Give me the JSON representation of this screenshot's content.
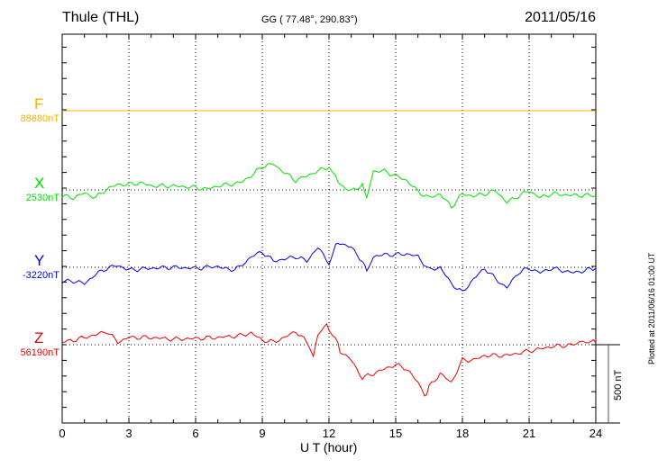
{
  "header": {
    "station": "Thule (THL)",
    "coords": "GG ( 77.48°, 290.83°)",
    "date": "2011/05/16"
  },
  "footer": {
    "plotted": "Plotted at 2011/06/16 01:00 UT"
  },
  "chart_data": {
    "type": "line",
    "title": "Thule (THL) 2011/05/16",
    "xlabel": "U T (hour)",
    "xlim": [
      0,
      24
    ],
    "xticks": [
      "0",
      "3",
      "6",
      "9",
      "12",
      "15",
      "18",
      "21",
      "24"
    ],
    "scale_bar": "500 nT",
    "grid": true,
    "series": [
      {
        "name": "F",
        "baseline": "88880nT",
        "color": "#ffb000",
        "points": [
          [
            0,
            0
          ],
          [
            24,
            0
          ]
        ]
      },
      {
        "name": "X",
        "baseline": "2530nT",
        "color": "#00e000",
        "points": [
          [
            0,
            -40
          ],
          [
            0.5,
            -50
          ],
          [
            1,
            -20
          ],
          [
            1.5,
            -50
          ],
          [
            2,
            5
          ],
          [
            2.5,
            35
          ],
          [
            3,
            35
          ],
          [
            3.5,
            45
          ],
          [
            4,
            25
          ],
          [
            5,
            25
          ],
          [
            6,
            15
          ],
          [
            6.5,
            5
          ],
          [
            7,
            25
          ],
          [
            8,
            45
          ],
          [
            8.5,
            90
          ],
          [
            9,
            150
          ],
          [
            9.5,
            165
          ],
          [
            10,
            110
          ],
          [
            10.5,
            60
          ],
          [
            11,
            90
          ],
          [
            11.5,
            120
          ],
          [
            12,
            150
          ],
          [
            12.3,
            80
          ],
          [
            12.5,
            35
          ],
          [
            13,
            -10
          ],
          [
            13.5,
            35
          ],
          [
            13.7,
            -50
          ],
          [
            14,
            120
          ],
          [
            14.5,
            120
          ],
          [
            15,
            90
          ],
          [
            15.5,
            60
          ],
          [
            16,
            -10
          ],
          [
            16.5,
            -50
          ],
          [
            17,
            -25
          ],
          [
            17.5,
            -110
          ],
          [
            18,
            -25
          ],
          [
            18.5,
            -40
          ],
          [
            19,
            -25
          ],
          [
            19.5,
            -5
          ],
          [
            20,
            -80
          ],
          [
            20.5,
            -40
          ],
          [
            21,
            -5
          ],
          [
            21.5,
            -50
          ],
          [
            22,
            -25
          ],
          [
            23,
            -35
          ],
          [
            24,
            -35
          ]
        ]
      },
      {
        "name": "Y",
        "baseline": "-3220nT",
        "color": "#0000ee",
        "points": [
          [
            0,
            -92
          ],
          [
            0.5,
            -86
          ],
          [
            1,
            -104
          ],
          [
            1.5,
            -46
          ],
          [
            2,
            -6
          ],
          [
            2.5,
            12
          ],
          [
            3,
            -17
          ],
          [
            4,
            -6
          ],
          [
            5,
            0
          ],
          [
            6,
            -6
          ],
          [
            7,
            6
          ],
          [
            7.5,
            -17
          ],
          [
            8,
            0
          ],
          [
            8.5,
            69
          ],
          [
            9,
            98
          ],
          [
            9.5,
            40
          ],
          [
            10,
            52
          ],
          [
            10.5,
            69
          ],
          [
            11,
            40
          ],
          [
            11.5,
            127
          ],
          [
            12,
            29
          ],
          [
            12.3,
            144
          ],
          [
            12.5,
            155
          ],
          [
            13,
            127
          ],
          [
            13.5,
            40
          ],
          [
            13.7,
            -17
          ],
          [
            14,
            69
          ],
          [
            14.5,
            81
          ],
          [
            15,
            81
          ],
          [
            15.5,
            86
          ],
          [
            16,
            69
          ],
          [
            16.5,
            -17
          ],
          [
            17,
            0
          ],
          [
            17.5,
            -104
          ],
          [
            18,
            -161
          ],
          [
            18.5,
            -75
          ],
          [
            19,
            -6
          ],
          [
            19.5,
            -75
          ],
          [
            20,
            -132
          ],
          [
            20.5,
            -35
          ],
          [
            21,
            -6
          ],
          [
            21.5,
            -35
          ],
          [
            22,
            -6
          ],
          [
            23,
            -35
          ],
          [
            24,
            -6
          ]
        ]
      },
      {
        "name": "Z",
        "baseline": "56190nT",
        "color": "#ee0000",
        "points": [
          [
            0,
            17
          ],
          [
            0.5,
            29
          ],
          [
            1,
            46
          ],
          [
            1.5,
            63
          ],
          [
            2,
            86
          ],
          [
            2.5,
            17
          ],
          [
            3,
            46
          ],
          [
            4,
            46
          ],
          [
            5,
            35
          ],
          [
            6,
            40
          ],
          [
            7,
            46
          ],
          [
            8,
            58
          ],
          [
            8.5,
            75
          ],
          [
            9,
            29
          ],
          [
            9.5,
            17
          ],
          [
            10,
            46
          ],
          [
            10.5,
            86
          ],
          [
            11,
            17
          ],
          [
            11.3,
            -69
          ],
          [
            11.5,
            63
          ],
          [
            11.8,
            132
          ],
          [
            12,
            104
          ],
          [
            12.3,
            46
          ],
          [
            12.5,
            -40
          ],
          [
            13,
            -98
          ],
          [
            13.5,
            -213
          ],
          [
            14,
            -184
          ],
          [
            14.5,
            -155
          ],
          [
            15,
            -127
          ],
          [
            15.5,
            -155
          ],
          [
            16,
            -242
          ],
          [
            16.3,
            -340
          ],
          [
            16.5,
            -270
          ],
          [
            17,
            -184
          ],
          [
            17.5,
            -242
          ],
          [
            18,
            -98
          ],
          [
            18.5,
            -98
          ],
          [
            19,
            -69
          ],
          [
            20,
            -69
          ],
          [
            21,
            -40
          ],
          [
            22,
            -12
          ],
          [
            23,
            0
          ],
          [
            23.8,
            29
          ],
          [
            24,
            12
          ]
        ]
      }
    ]
  }
}
